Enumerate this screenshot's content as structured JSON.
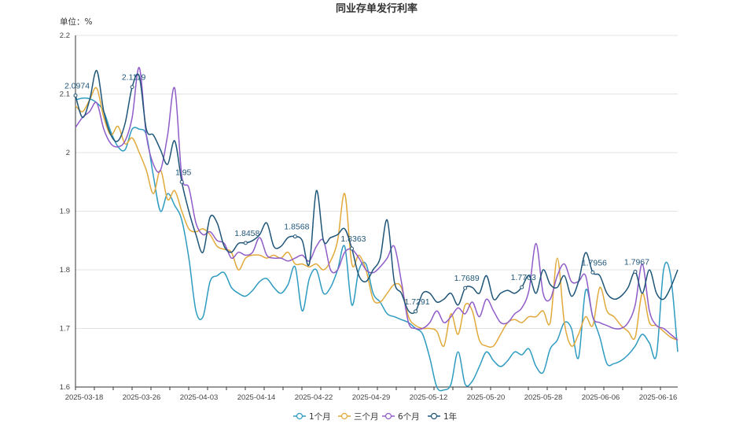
{
  "chart_data": {
    "type": "line",
    "title": "同业存单发行利率",
    "unit_label": "单位：%",
    "ylim": [
      1.6,
      2.2
    ],
    "yticks": [
      "1.6",
      "1.7",
      "1.8",
      "1.9",
      "2",
      "2.1",
      "2.2"
    ],
    "x_tick_labels": [
      "2025-03-18",
      "2025-03-26",
      "2025-04-03",
      "2025-04-14",
      "2025-04-22",
      "2025-04-29",
      "2025-05-12",
      "2025-05-20",
      "2025-05-28",
      "2025-06-06",
      "2025-06-16"
    ],
    "legend_position": "bottom",
    "grid": true,
    "series": [
      {
        "name": "1个月",
        "color": "#2e9bc0",
        "values": [
          2.09,
          2.093,
          2.092,
          2.085,
          2.07,
          2.035,
          2.01,
          2.005,
          2.04,
          2.04,
          2.03,
          1.96,
          1.9,
          1.93,
          1.91,
          1.885,
          1.82,
          1.73,
          1.72,
          1.78,
          1.79,
          1.795,
          1.77,
          1.76,
          1.755,
          1.765,
          1.78,
          1.785,
          1.77,
          1.76,
          1.775,
          1.805,
          1.73,
          1.785,
          1.8,
          1.76,
          1.77,
          1.8,
          1.84,
          1.74,
          1.8,
          1.81,
          1.76,
          1.745,
          1.725,
          1.72,
          1.715,
          1.71,
          1.7,
          1.69,
          1.65,
          1.6,
          1.595,
          1.605,
          1.66,
          1.605,
          1.61,
          1.635,
          1.66,
          1.645,
          1.635,
          1.645,
          1.66,
          1.655,
          1.665,
          1.635,
          1.625,
          1.665,
          1.68,
          1.71,
          1.7,
          1.65,
          1.765,
          1.72,
          1.685,
          1.64,
          1.64,
          1.645,
          1.655,
          1.67,
          1.69,
          1.675,
          1.655,
          1.8,
          1.79,
          1.66
        ]
      },
      {
        "name": "三个月",
        "color": "#e1a93a",
        "values": [
          2.08,
          2.07,
          2.09,
          2.11,
          2.06,
          2.03,
          2.045,
          2.015,
          2.025,
          2.0,
          1.97,
          1.93,
          1.97,
          1.92,
          1.935,
          1.9,
          1.87,
          1.865,
          1.87,
          1.86,
          1.84,
          1.835,
          1.83,
          1.8,
          1.82,
          1.825,
          1.825,
          1.82,
          1.825,
          1.82,
          1.83,
          1.81,
          1.81,
          1.805,
          1.81,
          1.8,
          1.815,
          1.85,
          1.93,
          1.81,
          1.825,
          1.8,
          1.75,
          1.745,
          1.76,
          1.775,
          1.77,
          1.72,
          1.705,
          1.7,
          1.7,
          1.695,
          1.67,
          1.725,
          1.69,
          1.74,
          1.73,
          1.68,
          1.67,
          1.67,
          1.69,
          1.71,
          1.715,
          1.71,
          1.72,
          1.72,
          1.73,
          1.71,
          1.82,
          1.71,
          1.67,
          1.69,
          1.72,
          1.705,
          1.77,
          1.73,
          1.72,
          1.705,
          1.695,
          1.685,
          1.76,
          1.71,
          1.705,
          1.695,
          1.685,
          1.68
        ]
      },
      {
        "name": "6个月",
        "color": "#8f5cc8",
        "values": [
          2.043,
          2.06,
          2.07,
          2.085,
          2.04,
          2.015,
          2.01,
          2.02,
          2.06,
          2.145,
          2.03,
          1.98,
          1.97,
          2.03,
          2.11,
          1.96,
          1.94,
          1.88,
          1.86,
          1.865,
          1.85,
          1.845,
          1.82,
          1.83,
          1.825,
          1.83,
          1.855,
          1.825,
          1.82,
          1.82,
          1.815,
          1.82,
          1.825,
          1.815,
          1.84,
          1.85,
          1.8,
          1.8,
          1.83,
          1.835,
          1.82,
          1.8,
          1.795,
          1.805,
          1.82,
          1.84,
          1.78,
          1.71,
          1.7,
          1.7,
          1.71,
          1.73,
          1.71,
          1.72,
          1.735,
          1.725,
          1.745,
          1.72,
          1.75,
          1.73,
          1.71,
          1.71,
          1.725,
          1.735,
          1.765,
          1.845,
          1.76,
          1.75,
          1.79,
          1.81,
          1.78,
          1.78,
          1.79,
          1.72,
          1.71,
          1.705,
          1.7,
          1.7,
          1.71,
          1.74,
          1.81,
          1.73,
          1.705,
          1.7,
          1.69,
          1.68
        ]
      },
      {
        "name": "1年",
        "color": "#1f5578",
        "values": [
          2.0974,
          2.06,
          2.09,
          2.14,
          2.07,
          2.03,
          2.02,
          2.05,
          2.1119,
          2.13,
          2.04,
          2.03,
          2.005,
          1.98,
          2.02,
          1.95,
          1.9,
          1.86,
          1.83,
          1.89,
          1.88,
          1.84,
          1.83,
          1.845,
          1.8458,
          1.85,
          1.86,
          1.88,
          1.84,
          1.84,
          1.855,
          1.8568,
          1.85,
          1.81,
          1.935,
          1.85,
          1.855,
          1.86,
          1.87,
          1.8363,
          1.79,
          1.78,
          1.8,
          1.82,
          1.885,
          1.78,
          1.76,
          1.73,
          1.7291,
          1.76,
          1.76,
          1.745,
          1.75,
          1.76,
          1.74,
          1.7689,
          1.77,
          1.76,
          1.79,
          1.75,
          1.76,
          1.765,
          1.76,
          1.7703,
          1.79,
          1.76,
          1.8,
          1.775,
          1.77,
          1.79,
          1.755,
          1.78,
          1.8293,
          1.7956,
          1.79,
          1.76,
          1.75,
          1.755,
          1.77,
          1.7967,
          1.76,
          1.8,
          1.76,
          1.75,
          1.77,
          1.8
        ]
      }
    ],
    "annotations": [
      {
        "series": "1年",
        "index": 0,
        "label": "2.0974"
      },
      {
        "series": "1年",
        "index": 8,
        "label": "2.1119"
      },
      {
        "series": "1年",
        "index": 15,
        "label": "1.95"
      },
      {
        "series": "1年",
        "index": 24,
        "label": "1.8458"
      },
      {
        "series": "1年",
        "index": 31,
        "label": "1.8568"
      },
      {
        "series": "1年",
        "index": 39,
        "label": "1.8363"
      },
      {
        "series": "1年",
        "index": 48,
        "label": "1.7291"
      },
      {
        "series": "1年",
        "index": 55,
        "label": "1.7689"
      },
      {
        "series": "1年",
        "index": 63,
        "label": "1.7703"
      },
      {
        "series": "1年",
        "index": 73,
        "label": "1.7956"
      },
      {
        "series": "1年",
        "index": 79,
        "label": "1.7967"
      }
    ]
  }
}
